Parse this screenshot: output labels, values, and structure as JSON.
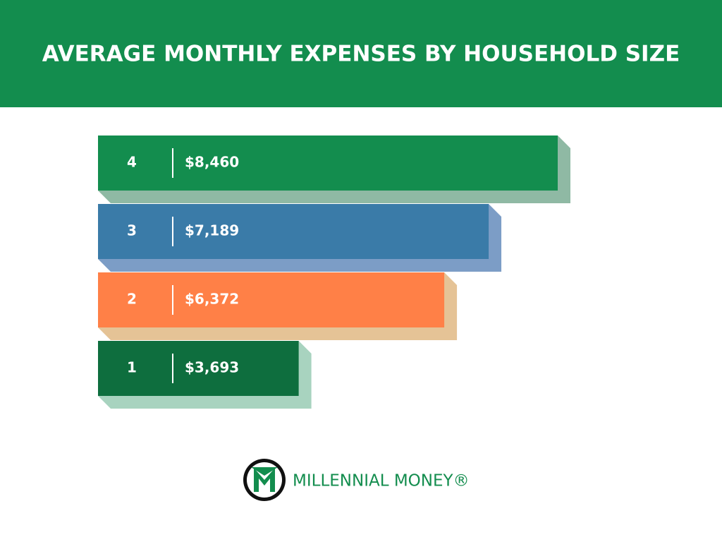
{
  "chart_data": {
    "type": "bar",
    "orientation": "horizontal",
    "title": "AVERAGE MONTHLY EXPENSES BY HOUSEHOLD SIZE",
    "categories": [
      "4",
      "3",
      "2",
      "1"
    ],
    "values": [
      8460,
      7189,
      6372,
      3693
    ],
    "value_labels": [
      "$8,460",
      "$7,189",
      "$6,372",
      "$3,693"
    ],
    "colors": [
      "#138d4e",
      "#3a7ba8",
      "#ff8047",
      "#0e6e3e"
    ]
  },
  "brand": "MILLENNIAL MONEY®"
}
